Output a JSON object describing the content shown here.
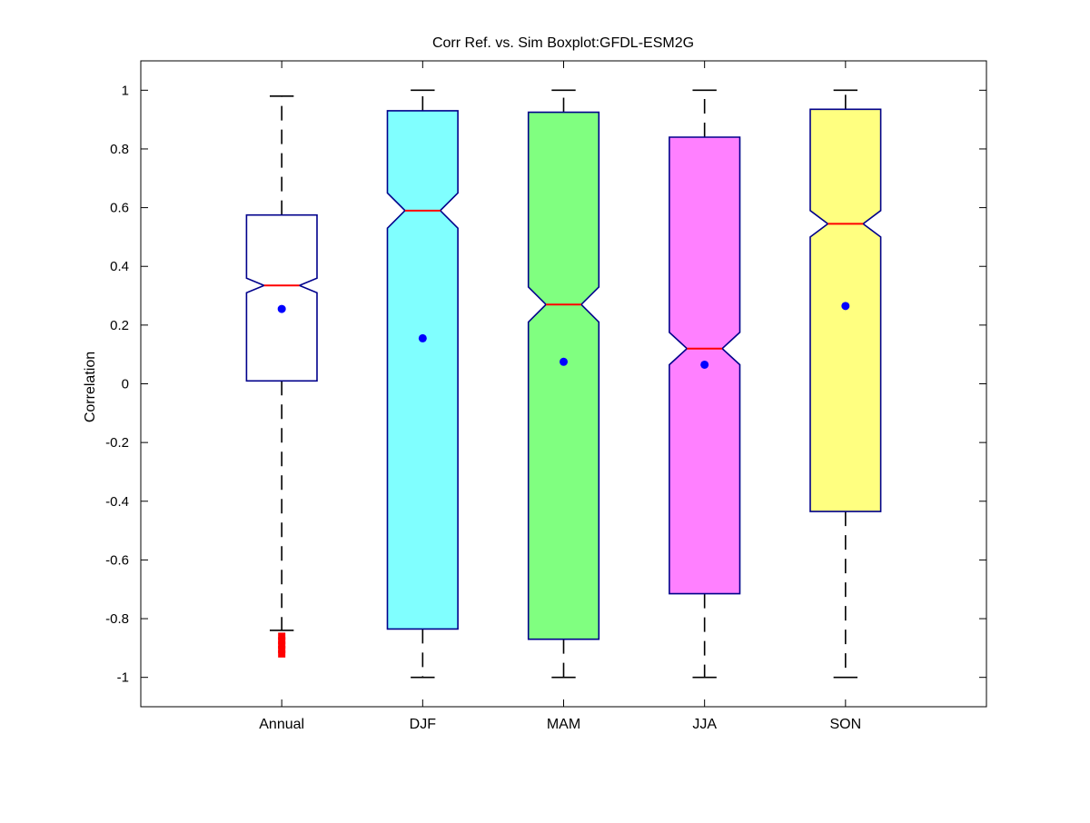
{
  "chart_data": {
    "type": "boxplot",
    "title": "Corr Ref. vs. Sim Boxplot:GFDL-ESM2G",
    "xlabel": "",
    "ylabel": "Correlation",
    "ylim": [
      -1.1,
      1.1
    ],
    "yticks": [
      1,
      0.8,
      0.6,
      0.4,
      0.2,
      0,
      -0.2,
      -0.4,
      -0.6,
      -0.8,
      -1
    ],
    "ytick_labels": [
      "1",
      "0.8",
      "0.6",
      "0.4",
      "0.2",
      "0",
      "-0.2",
      "-0.4",
      "-0.6",
      "-0.8",
      "-1"
    ],
    "xlim": [
      0,
      6
    ],
    "grid": false,
    "categories": [
      "Annual",
      "DJF",
      "MAM",
      "JJA",
      "SON"
    ],
    "boxes": [
      {
        "category": "Annual",
        "q1": 0.01,
        "median": 0.335,
        "q3": 0.575,
        "whisker_low": -0.84,
        "whisker_high": 0.98,
        "mean": 0.255,
        "notch_low": 0.31,
        "notch_high": 0.36,
        "outliers": [
          -0.86,
          -0.875,
          -0.89,
          -0.905,
          -0.92
        ],
        "fill": "#ffffff"
      },
      {
        "category": "DJF",
        "q1": -0.835,
        "median": 0.59,
        "q3": 0.93,
        "whisker_low": -1.0,
        "whisker_high": 1.0,
        "mean": 0.155,
        "notch_low": 0.53,
        "notch_high": 0.65,
        "outliers": [],
        "fill": "#80ffff"
      },
      {
        "category": "MAM",
        "q1": -0.87,
        "median": 0.27,
        "q3": 0.925,
        "whisker_low": -1.0,
        "whisker_high": 1.0,
        "mean": 0.075,
        "notch_low": 0.21,
        "notch_high": 0.33,
        "outliers": [],
        "fill": "#80ff80"
      },
      {
        "category": "JJA",
        "q1": -0.715,
        "median": 0.12,
        "q3": 0.84,
        "whisker_low": -1.0,
        "whisker_high": 1.0,
        "mean": 0.065,
        "notch_low": 0.065,
        "notch_high": 0.175,
        "outliers": [],
        "fill": "#ff80ff"
      },
      {
        "category": "SON",
        "q1": -0.435,
        "median": 0.545,
        "q3": 0.935,
        "whisker_low": -1.0,
        "whisker_high": 1.0,
        "mean": 0.265,
        "notch_low": 0.5,
        "notch_high": 0.59,
        "outliers": [],
        "fill": "#ffff80"
      }
    ],
    "colors": {
      "box_edge": "#00008b",
      "median": "#ff0000",
      "mean_marker": "#0000ff",
      "whisker": "#000000",
      "outlier": "#ff0000",
      "axes": "#000000"
    }
  }
}
